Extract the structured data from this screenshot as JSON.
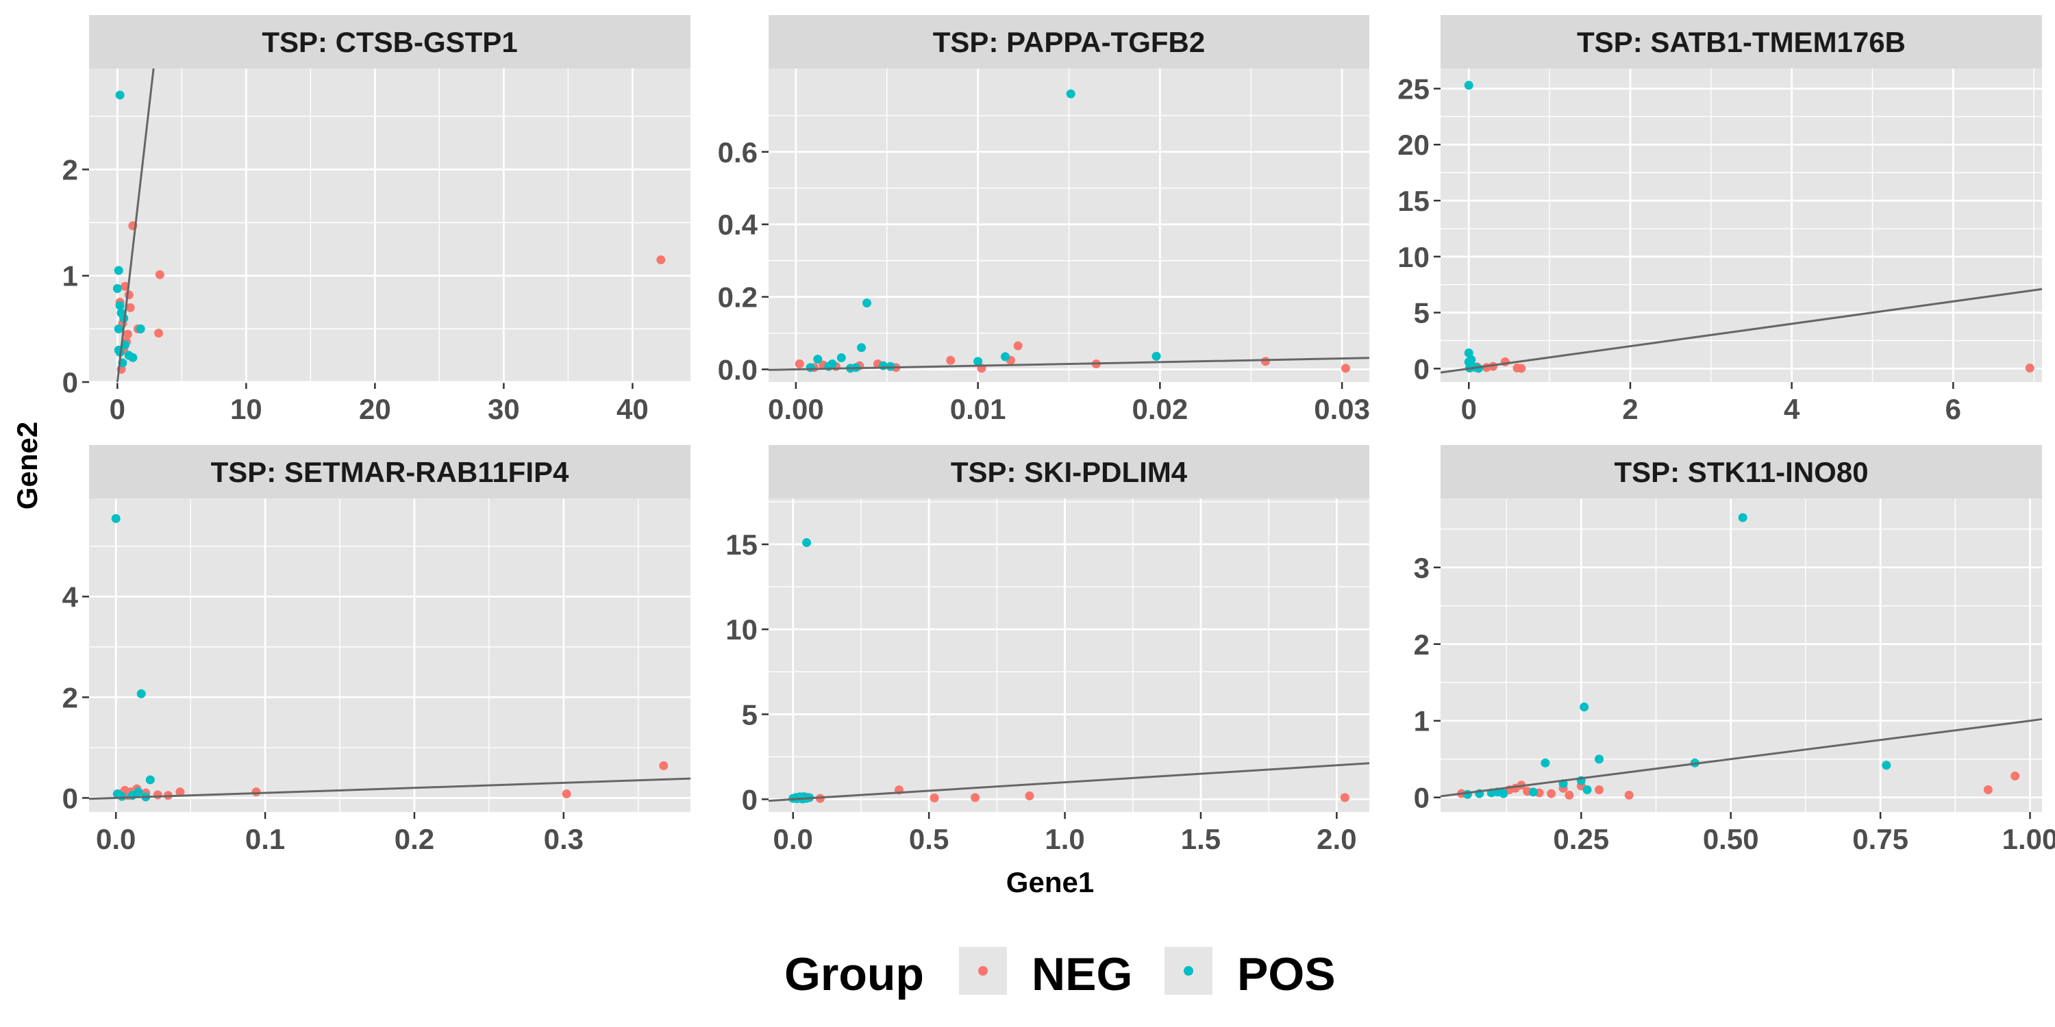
{
  "figure": {
    "xlabel": "Gene1",
    "ylabel": "Gene2",
    "legend": {
      "title": "Group",
      "placement": "bottom",
      "entries": [
        {
          "label": "NEG",
          "color": "#F8766D"
        },
        {
          "label": "POS",
          "color": "#00BFC4"
        }
      ]
    },
    "colors": {
      "panel_bg": "#E5E5E5",
      "strip_bg": "#D9D9D9",
      "grid": "#FFFFFF",
      "fit_line": "#666666",
      "NEG": "#F8766D",
      "POS": "#00BFC4"
    }
  },
  "chart_data": [
    {
      "type": "scatter",
      "title": "TSP: CTSB-GSTP1",
      "xlim": [
        -2.2,
        44.5
      ],
      "ylim": [
        0,
        2.95
      ],
      "xticks": [
        0,
        10,
        20,
        30,
        40
      ],
      "xtick_labels": [
        "0",
        "10",
        "20",
        "30",
        "40"
      ],
      "yticks": [
        0,
        1,
        2
      ],
      "ytick_labels": [
        "0",
        "1",
        "2"
      ],
      "fit_line": {
        "slope": 1.05,
        "intercept": 0
      },
      "series": [
        {
          "name": "NEG",
          "points": [
            [
              0.3,
              0.12
            ],
            [
              0.5,
              0.3
            ],
            [
              0.8,
              0.45
            ],
            [
              0.4,
              0.55
            ],
            [
              1.0,
              0.7
            ],
            [
              0.9,
              0.82
            ],
            [
              0.6,
              0.9
            ],
            [
              1.2,
              1.47
            ],
            [
              1.6,
              0.5
            ],
            [
              3.3,
              1.01
            ],
            [
              3.2,
              0.46
            ],
            [
              42.2,
              1.15
            ],
            [
              0.2,
              0.75
            ],
            [
              0.7,
              0.38
            ]
          ]
        },
        {
          "name": "POS",
          "points": [
            [
              0.2,
              2.7
            ],
            [
              0.1,
              1.05
            ],
            [
              0.0,
              0.88
            ],
            [
              0.2,
              0.72
            ],
            [
              0.3,
              0.65
            ],
            [
              0.1,
              0.5
            ],
            [
              0.6,
              0.35
            ],
            [
              0.9,
              0.25
            ],
            [
              1.2,
              0.23
            ],
            [
              0.4,
              0.18
            ],
            [
              0.2,
              0.28
            ],
            [
              1.8,
              0.5
            ],
            [
              0.1,
              0.3
            ],
            [
              0.5,
              0.6
            ]
          ]
        }
      ]
    },
    {
      "type": "scatter",
      "title": "TSP: PAPPA-TGFB2",
      "xlim": [
        -0.0015,
        0.0315
      ],
      "ylim": [
        -0.035,
        0.83
      ],
      "xticks": [
        0.0,
        0.01,
        0.02,
        0.03
      ],
      "xtick_labels": [
        "0.00",
        "0.01",
        "0.02",
        "0.03"
      ],
      "yticks": [
        0.0,
        0.2,
        0.4,
        0.6
      ],
      "ytick_labels": [
        "0.0",
        "0.2",
        "0.4",
        "0.6"
      ],
      "fit_line": {
        "slope": 1.0,
        "intercept": 0
      },
      "series": [
        {
          "name": "NEG",
          "points": [
            [
              0.0002,
              0.015
            ],
            [
              0.001,
              0.005
            ],
            [
              0.0015,
              0.012
            ],
            [
              0.0022,
              0.008
            ],
            [
              0.0035,
              0.01
            ],
            [
              0.0045,
              0.015
            ],
            [
              0.0055,
              0.005
            ],
            [
              0.0085,
              0.025
            ],
            [
              0.0102,
              0.003
            ],
            [
              0.0118,
              0.025
            ],
            [
              0.0122,
              0.065
            ],
            [
              0.0165,
              0.015
            ],
            [
              0.0258,
              0.022
            ],
            [
              0.0302,
              0.003
            ]
          ]
        },
        {
          "name": "POS",
          "points": [
            [
              0.0151,
              0.76
            ],
            [
              0.0039,
              0.183
            ],
            [
              0.0036,
              0.06
            ],
            [
              0.0025,
              0.032
            ],
            [
              0.0012,
              0.028
            ],
            [
              0.0008,
              0.005
            ],
            [
              0.0018,
              0.008
            ],
            [
              0.002,
              0.015
            ],
            [
              0.003,
              0.003
            ],
            [
              0.0048,
              0.01
            ],
            [
              0.0052,
              0.008
            ],
            [
              0.01,
              0.022
            ],
            [
              0.0115,
              0.035
            ],
            [
              0.0198,
              0.036
            ],
            [
              0.0033,
              0.005
            ]
          ]
        }
      ]
    },
    {
      "type": "scatter",
      "title": "TSP: SATB1-TMEM176B",
      "xlim": [
        -0.35,
        7.1
      ],
      "ylim": [
        -1.2,
        26.8
      ],
      "xticks": [
        0,
        2,
        4,
        6
      ],
      "xtick_labels": [
        "0",
        "2",
        "4",
        "6"
      ],
      "yticks": [
        0,
        5,
        10,
        15,
        20,
        25
      ],
      "ytick_labels": [
        "0",
        "5",
        "10",
        "15",
        "20",
        "25"
      ],
      "fit_line": {
        "slope": 1.0,
        "intercept": 0
      },
      "series": [
        {
          "name": "NEG",
          "points": [
            [
              0.22,
              0.1
            ],
            [
              0.45,
              0.6
            ],
            [
              0.6,
              0.05
            ],
            [
              0.65,
              0.02
            ],
            [
              6.95,
              0.05
            ],
            [
              0.1,
              0.15
            ],
            [
              0.3,
              0.2
            ]
          ]
        },
        {
          "name": "POS",
          "points": [
            [
              0.0,
              25.3
            ],
            [
              0.0,
              1.4
            ],
            [
              0.0,
              0.6
            ],
            [
              0.02,
              0.3
            ],
            [
              0.05,
              0.15
            ],
            [
              0.01,
              0.05
            ],
            [
              0.08,
              0.1
            ],
            [
              0.03,
              0.8
            ],
            [
              0.12,
              0.02
            ]
          ]
        }
      ]
    },
    {
      "type": "scatter",
      "title": "TSP: SETMAR-RAB11FIP4",
      "xlim": [
        -0.018,
        0.385
      ],
      "ylim": [
        -0.28,
        5.95
      ],
      "xticks": [
        0.0,
        0.1,
        0.2,
        0.3
      ],
      "xtick_labels": [
        "0.0",
        "0.1",
        "0.2",
        "0.3"
      ],
      "yticks": [
        0,
        2,
        4
      ],
      "ytick_labels": [
        "0",
        "2",
        "4"
      ],
      "fit_line": {
        "slope": 1.0,
        "intercept": 0
      },
      "series": [
        {
          "name": "NEG",
          "points": [
            [
              0.003,
              0.08
            ],
            [
              0.006,
              0.15
            ],
            [
              0.01,
              0.12
            ],
            [
              0.014,
              0.18
            ],
            [
              0.02,
              0.1
            ],
            [
              0.028,
              0.06
            ],
            [
              0.035,
              0.05
            ],
            [
              0.043,
              0.12
            ],
            [
              0.094,
              0.12
            ],
            [
              0.302,
              0.08
            ],
            [
              0.367,
              0.64
            ],
            [
              0.008,
              0.05
            ]
          ]
        },
        {
          "name": "POS",
          "points": [
            [
              0.0,
              5.55
            ],
            [
              0.017,
              2.07
            ],
            [
              0.023,
              0.36
            ],
            [
              0.015,
              0.12
            ],
            [
              0.004,
              0.03
            ],
            [
              0.001,
              0.08
            ],
            [
              0.011,
              0.05
            ],
            [
              0.02,
              0.02
            ]
          ]
        }
      ]
    },
    {
      "type": "scatter",
      "title": "TSP: SKI-PDLIM4",
      "xlim": [
        -0.09,
        2.12
      ],
      "ylim": [
        -0.75,
        17.7
      ],
      "xticks": [
        0.0,
        0.5,
        1.0,
        1.5,
        2.0
      ],
      "xtick_labels": [
        "0.0",
        "0.5",
        "1.0",
        "1.5",
        "2.0"
      ],
      "yticks": [
        0,
        5,
        10,
        15
      ],
      "ytick_labels": [
        "0",
        "5",
        "10",
        "15"
      ],
      "fit_line": {
        "slope": 1.0,
        "intercept": 0
      },
      "series": [
        {
          "name": "NEG",
          "points": [
            [
              0.1,
              0.05
            ],
            [
              0.39,
              0.55
            ],
            [
              0.52,
              0.08
            ],
            [
              0.67,
              0.1
            ],
            [
              0.87,
              0.2
            ],
            [
              2.03,
              0.1
            ],
            [
              0.05,
              0.12
            ]
          ]
        },
        {
          "name": "POS",
          "points": [
            [
              0.05,
              15.1
            ],
            [
              0.0,
              0.05
            ],
            [
              0.01,
              0.1
            ],
            [
              0.02,
              0.12
            ],
            [
              0.03,
              0.08
            ],
            [
              0.04,
              0.15
            ],
            [
              0.05,
              0.06
            ],
            [
              0.06,
              0.1
            ],
            [
              0.015,
              0.03
            ],
            [
              0.035,
              0.02
            ],
            [
              0.045,
              0.05
            ],
            [
              0.025,
              0.14
            ]
          ]
        }
      ]
    },
    {
      "type": "scatter",
      "title": "TSP: STK11-INO80",
      "xlim": [
        0.015,
        1.02
      ],
      "ylim": [
        -0.19,
        3.9
      ],
      "xticks": [
        0.25,
        0.5,
        0.75,
        1.0
      ],
      "xtick_labels": [
        "0.25",
        "0.50",
        "0.75",
        "1.00"
      ],
      "yticks": [
        0,
        1,
        2,
        3
      ],
      "ytick_labels": [
        "0",
        "1",
        "2",
        "3"
      ],
      "fit_line": {
        "slope": 1.0,
        "intercept": 0
      },
      "series": [
        {
          "name": "NEG",
          "points": [
            [
              0.05,
              0.05
            ],
            [
              0.13,
              0.1
            ],
            [
              0.14,
              0.12
            ],
            [
              0.15,
              0.16
            ],
            [
              0.16,
              0.08
            ],
            [
              0.18,
              0.06
            ],
            [
              0.2,
              0.05
            ],
            [
              0.22,
              0.12
            ],
            [
              0.23,
              0.03
            ],
            [
              0.25,
              0.15
            ],
            [
              0.28,
              0.1
            ],
            [
              0.33,
              0.03
            ],
            [
              0.93,
              0.1
            ],
            [
              0.975,
              0.28
            ]
          ]
        },
        {
          "name": "POS",
          "points": [
            [
              0.52,
              3.65
            ],
            [
              0.255,
              1.18
            ],
            [
              0.28,
              0.5
            ],
            [
              0.19,
              0.45
            ],
            [
              0.44,
              0.45
            ],
            [
              0.76,
              0.42
            ],
            [
              0.25,
              0.22
            ],
            [
              0.08,
              0.05
            ],
            [
              0.1,
              0.06
            ],
            [
              0.11,
              0.07
            ],
            [
              0.12,
              0.05
            ],
            [
              0.17,
              0.07
            ],
            [
              0.22,
              0.18
            ],
            [
              0.26,
              0.1
            ],
            [
              0.06,
              0.04
            ]
          ]
        }
      ]
    }
  ]
}
